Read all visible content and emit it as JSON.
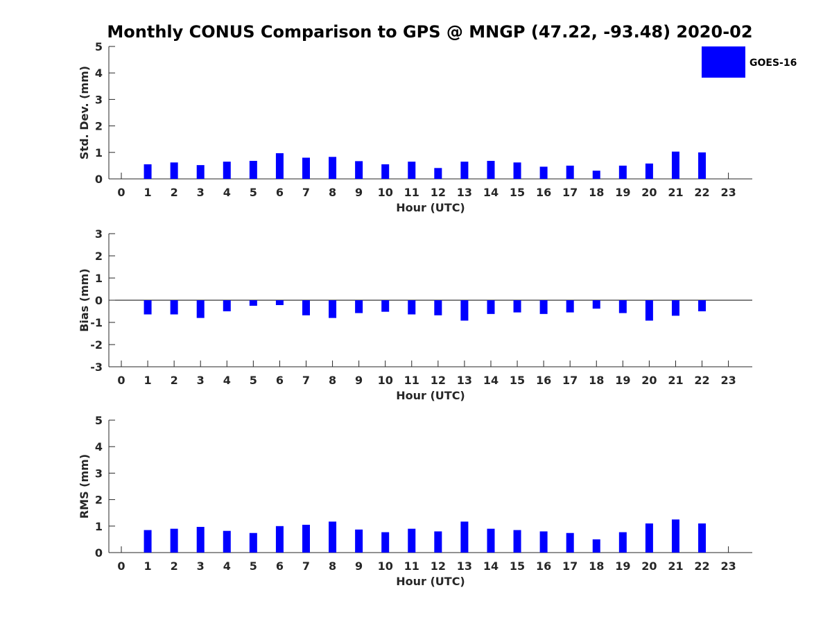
{
  "chart_data": {
    "type": "bar",
    "title": "Monthly CONUS Comparison to GPS @ MNGP (47.22, -93.48) 2020-02",
    "legend": {
      "label": "GOES-16",
      "placement": "top-right",
      "color": "#0000ff"
    },
    "bar_color": "#0000ff",
    "panels": [
      {
        "id": "std",
        "ylabel": "Std. Dev. (mm)",
        "xlabel": "Hour (UTC)",
        "ylim": [
          0,
          5
        ],
        "yticks": [
          0,
          1,
          2,
          3,
          4,
          5
        ],
        "x": [
          0,
          1,
          2,
          3,
          4,
          5,
          6,
          7,
          8,
          9,
          10,
          11,
          12,
          13,
          14,
          15,
          16,
          17,
          18,
          19,
          20,
          21,
          22,
          23
        ],
        "values": [
          null,
          0.55,
          0.62,
          0.52,
          0.65,
          0.68,
          0.97,
          0.8,
          0.83,
          0.67,
          0.55,
          0.65,
          0.41,
          0.65,
          0.68,
          0.62,
          0.46,
          0.5,
          0.31,
          0.5,
          0.58,
          1.03,
          1.0,
          null
        ]
      },
      {
        "id": "bias",
        "ylabel": "Bias (mm)",
        "xlabel": "Hour (UTC)",
        "ylim": [
          -3,
          3
        ],
        "yticks": [
          -3,
          -2,
          -1,
          0,
          1,
          2,
          3
        ],
        "x": [
          0,
          1,
          2,
          3,
          4,
          5,
          6,
          7,
          8,
          9,
          10,
          11,
          12,
          13,
          14,
          15,
          16,
          17,
          18,
          19,
          20,
          21,
          22,
          23
        ],
        "values": [
          null,
          -0.64,
          -0.64,
          -0.8,
          -0.5,
          -0.25,
          -0.22,
          -0.68,
          -0.8,
          -0.58,
          -0.52,
          -0.64,
          -0.68,
          -0.92,
          -0.62,
          -0.55,
          -0.62,
          -0.55,
          -0.38,
          -0.58,
          -0.92,
          -0.7,
          -0.5,
          null
        ]
      },
      {
        "id": "rms",
        "ylabel": "RMS (mm)",
        "xlabel": "Hour (UTC)",
        "ylim": [
          0,
          5
        ],
        "yticks": [
          0,
          1,
          2,
          3,
          4,
          5
        ],
        "x": [
          0,
          1,
          2,
          3,
          4,
          5,
          6,
          7,
          8,
          9,
          10,
          11,
          12,
          13,
          14,
          15,
          16,
          17,
          18,
          19,
          20,
          21,
          22,
          23
        ],
        "values": [
          null,
          0.85,
          0.9,
          0.97,
          0.82,
          0.74,
          1.0,
          1.05,
          1.17,
          0.87,
          0.77,
          0.9,
          0.8,
          1.17,
          0.9,
          0.85,
          0.8,
          0.74,
          0.5,
          0.77,
          1.1,
          1.25,
          1.1,
          null
        ]
      }
    ]
  }
}
